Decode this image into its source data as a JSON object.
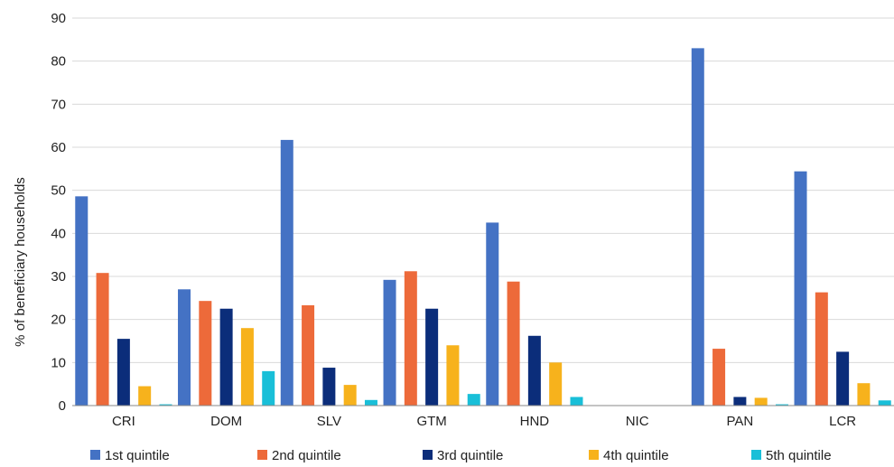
{
  "chart_data": {
    "type": "bar",
    "title": "",
    "xlabel": "",
    "ylabel": "% of beneficiary households",
    "ylim": [
      0,
      90
    ],
    "yticks": [
      0,
      10,
      20,
      30,
      40,
      50,
      60,
      70,
      80,
      90
    ],
    "grid": true,
    "legend_position": "bottom",
    "categories": [
      "CRI",
      "DOM",
      "SLV",
      "GTM",
      "HND",
      "NIC",
      "PAN",
      "LCR"
    ],
    "series": [
      {
        "name": "1st quintile",
        "color": "#4472C4",
        "values": [
          48.6,
          27.0,
          61.7,
          29.2,
          42.5,
          0,
          83.0,
          54.4
        ]
      },
      {
        "name": "2nd quintile",
        "color": "#ED6A3A",
        "values": [
          30.8,
          24.3,
          23.3,
          31.2,
          28.8,
          0,
          13.2,
          26.3
        ]
      },
      {
        "name": "3rd quintile",
        "color": "#0B2D7A",
        "values": [
          15.5,
          22.5,
          8.8,
          22.5,
          16.2,
          0,
          2.0,
          12.5
        ]
      },
      {
        "name": "4th quintile",
        "color": "#F7B21C",
        "values": [
          4.5,
          18.0,
          4.8,
          14.0,
          10.0,
          0,
          1.8,
          5.2
        ]
      },
      {
        "name": "5th quintile",
        "color": "#19BFD8",
        "values": [
          0.3,
          8.0,
          1.3,
          2.7,
          2.0,
          0,
          0.3,
          1.2
        ]
      }
    ]
  }
}
